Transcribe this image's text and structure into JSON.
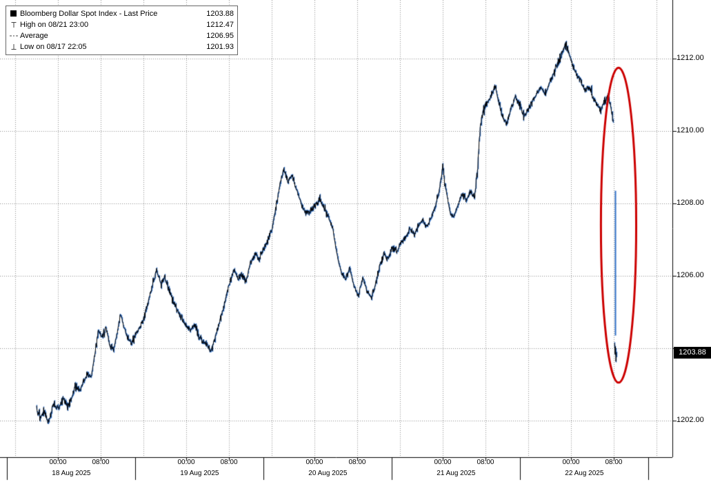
{
  "chart": {
    "last_price_badge": "1203.88",
    "legend": {
      "rows": [
        {
          "marker": "series-square",
          "label": "Bloomberg Dollar Spot Index - Last Price",
          "value": "1203.88"
        },
        {
          "marker": "high-marker",
          "label": "High on 08/21 23:00",
          "value": "1212.47"
        },
        {
          "marker": "average-marker",
          "label": "Average",
          "value": "1206.95"
        },
        {
          "marker": "low-marker",
          "label": "Low on 08/17 22:05",
          "value": "1201.93"
        }
      ]
    },
    "colors": {
      "line_black": "#000000",
      "line_blue": "#2f6fc5",
      "annotation_red": "#cc0000",
      "grid": "#8d8d8d",
      "axis": "#000000",
      "badge_bg": "#000000",
      "badge_text": "#ffffff"
    }
  },
  "chart_data": {
    "type": "line",
    "title": "Bloomberg Dollar Spot Index - Last Price",
    "legend_position": "top-left",
    "grid": true,
    "t_unit": "hours since 2025-08-17 20:00",
    "x_axis": {
      "t_min": -6.84,
      "t_max": 118.97,
      "grid_start_t": -4,
      "grid_interval_hours": 8,
      "time_ticks": [
        {
          "t": 4,
          "label": "00:00"
        },
        {
          "t": 12,
          "label": "08:00"
        },
        {
          "t": 28,
          "label": "00:00"
        },
        {
          "t": 36,
          "label": "08:00"
        },
        {
          "t": 52,
          "label": "00:00"
        },
        {
          "t": 60,
          "label": "08:00"
        },
        {
          "t": 76,
          "label": "00:00"
        },
        {
          "t": 84,
          "label": "08:00"
        },
        {
          "t": 100,
          "label": "00:00"
        },
        {
          "t": 108,
          "label": "08:00"
        }
      ],
      "date_labels": [
        {
          "t": 6.5,
          "label": "18 Aug 2025"
        },
        {
          "t": 30.5,
          "label": "19 Aug 2025"
        },
        {
          "t": 54.5,
          "label": "20 Aug 2025"
        },
        {
          "t": 78.5,
          "label": "21 Aug 2025"
        },
        {
          "t": 102.5,
          "label": "22 Aug 2025"
        }
      ]
    },
    "y_axis": {
      "min": 1200.99,
      "max": 1213.62,
      "ticks": [
        {
          "value": 1212,
          "label": "1212.00"
        },
        {
          "value": 1210,
          "label": "1210.00"
        },
        {
          "value": 1208,
          "label": "1208.00"
        },
        {
          "value": 1206,
          "label": "1206.00"
        },
        {
          "value": 1204,
          "label": ""
        },
        {
          "value": 1202,
          "label": "1202.00"
        }
      ]
    },
    "stats": {
      "last": 1203.88,
      "high": 1212.47,
      "high_time": "08/21 23:00",
      "average": 1206.95,
      "low": 1201.93,
      "low_time": "08/17 22:05"
    },
    "anchors": [
      [
        0,
        1202.35
      ],
      [
        0.8,
        1202.1
      ],
      [
        1.5,
        1202.25
      ],
      [
        2.1,
        1201.93
      ],
      [
        2.6,
        1202.15
      ],
      [
        3.2,
        1202.45
      ],
      [
        4,
        1202.3
      ],
      [
        5,
        1202.6
      ],
      [
        5.8,
        1202.4
      ],
      [
        6.5,
        1202.6
      ],
      [
        7.2,
        1202.95
      ],
      [
        8,
        1202.8
      ],
      [
        8.8,
        1203.1
      ],
      [
        9.5,
        1203.3
      ],
      [
        10.2,
        1203.2
      ],
      [
        11,
        1203.9
      ],
      [
        11.6,
        1204.5
      ],
      [
        12.2,
        1204.3
      ],
      [
        13,
        1204.55
      ],
      [
        13.6,
        1204.15
      ],
      [
        14.4,
        1203.95
      ],
      [
        15,
        1204.35
      ],
      [
        15.7,
        1204.95
      ],
      [
        16.3,
        1204.6
      ],
      [
        17,
        1204.3
      ],
      [
        17.8,
        1204.15
      ],
      [
        18.6,
        1204.4
      ],
      [
        19.5,
        1204.6
      ],
      [
        20.3,
        1204.95
      ],
      [
        21,
        1205.35
      ],
      [
        21.8,
        1205.8
      ],
      [
        22.5,
        1206.15
      ],
      [
        23.2,
        1205.8
      ],
      [
        24,
        1205.95
      ],
      [
        24.8,
        1205.6
      ],
      [
        25.5,
        1205.35
      ],
      [
        26.3,
        1205.05
      ],
      [
        27,
        1204.85
      ],
      [
        27.8,
        1204.65
      ],
      [
        28.8,
        1204.5
      ],
      [
        29.6,
        1204.65
      ],
      [
        30.4,
        1204.35
      ],
      [
        31.2,
        1204.15
      ],
      [
        32,
        1204.05
      ],
      [
        32.6,
        1203.9
      ],
      [
        33.3,
        1204.25
      ],
      [
        34,
        1204.6
      ],
      [
        34.8,
        1205.0
      ],
      [
        35.5,
        1205.45
      ],
      [
        36.2,
        1205.85
      ],
      [
        37,
        1206.15
      ],
      [
        37.7,
        1205.9
      ],
      [
        38.4,
        1206.05
      ],
      [
        39.2,
        1205.85
      ],
      [
        40,
        1206.35
      ],
      [
        40.8,
        1206.6
      ],
      [
        41.6,
        1206.45
      ],
      [
        42.4,
        1206.7
      ],
      [
        43.2,
        1206.95
      ],
      [
        44,
        1207.25
      ],
      [
        44.8,
        1207.9
      ],
      [
        45.5,
        1208.5
      ],
      [
        46.2,
        1208.95
      ],
      [
        47,
        1208.6
      ],
      [
        47.8,
        1208.8
      ],
      [
        48.6,
        1208.4
      ],
      [
        49.4,
        1208.05
      ],
      [
        50.2,
        1207.8
      ],
      [
        51,
        1207.75
      ],
      [
        52,
        1207.9
      ],
      [
        53,
        1208.1
      ],
      [
        53.8,
        1207.9
      ],
      [
        54.6,
        1207.6
      ],
      [
        55.4,
        1207.35
      ],
      [
        56.2,
        1206.6
      ],
      [
        57,
        1206.1
      ],
      [
        57.8,
        1205.9
      ],
      [
        58.6,
        1206.2
      ],
      [
        59.4,
        1205.7
      ],
      [
        60.2,
        1205.45
      ],
      [
        61,
        1205.95
      ],
      [
        61.8,
        1205.6
      ],
      [
        62.6,
        1205.4
      ],
      [
        63.4,
        1205.75
      ],
      [
        64.2,
        1206.25
      ],
      [
        65,
        1206.6
      ],
      [
        65.8,
        1206.45
      ],
      [
        66.6,
        1206.8
      ],
      [
        67.4,
        1206.7
      ],
      [
        68.2,
        1206.9
      ],
      [
        69,
        1207.05
      ],
      [
        69.8,
        1207.3
      ],
      [
        70.6,
        1207.15
      ],
      [
        71.4,
        1207.35
      ],
      [
        72.2,
        1207.55
      ],
      [
        73,
        1207.35
      ],
      [
        73.8,
        1207.6
      ],
      [
        74.6,
        1207.9
      ],
      [
        75.3,
        1208.35
      ],
      [
        76,
        1209.0
      ],
      [
        76.6,
        1208.4
      ],
      [
        77.3,
        1207.8
      ],
      [
        78,
        1207.6
      ],
      [
        78.8,
        1207.95
      ],
      [
        79.6,
        1208.25
      ],
      [
        80.4,
        1208.1
      ],
      [
        81.2,
        1208.35
      ],
      [
        82,
        1208.2
      ],
      [
        82.5,
        1208.9
      ],
      [
        83,
        1210.1
      ],
      [
        83.6,
        1210.6
      ],
      [
        84.4,
        1210.8
      ],
      [
        85.2,
        1211.0
      ],
      [
        85.8,
        1211.25
      ],
      [
        86.5,
        1210.75
      ],
      [
        87.2,
        1210.4
      ],
      [
        88,
        1210.2
      ],
      [
        88.8,
        1210.65
      ],
      [
        89.6,
        1210.95
      ],
      [
        90.4,
        1210.7
      ],
      [
        91.2,
        1210.4
      ],
      [
        92,
        1210.6
      ],
      [
        92.8,
        1210.85
      ],
      [
        93.6,
        1211.05
      ],
      [
        94.4,
        1211.2
      ],
      [
        95.2,
        1211.0
      ],
      [
        96,
        1211.35
      ],
      [
        96.8,
        1211.6
      ],
      [
        97.6,
        1211.9
      ],
      [
        98.4,
        1212.15
      ],
      [
        99,
        1212.45
      ],
      [
        99.6,
        1212.15
      ],
      [
        100,
        1211.95
      ],
      [
        100.6,
        1211.7
      ],
      [
        101.3,
        1211.5
      ],
      [
        102,
        1211.35
      ],
      [
        102.7,
        1211.1
      ],
      [
        103.4,
        1211.2
      ],
      [
        104.1,
        1210.9
      ],
      [
        104.8,
        1210.75
      ],
      [
        105.5,
        1210.6
      ],
      [
        106.2,
        1210.8
      ],
      [
        106.9,
        1211.0
      ],
      [
        107.4,
        1210.7
      ],
      [
        107.9,
        1210.25
      ]
    ],
    "crash": {
      "drop_line": {
        "t": 108.25,
        "from": 1208.35,
        "to": 1204.35
      },
      "tail": [
        [
          108.15,
          1204.15
        ],
        [
          108.25,
          1203.85
        ],
        [
          108.32,
          1204.05
        ],
        [
          108.4,
          1203.62
        ],
        [
          108.5,
          1203.88
        ]
      ]
    },
    "annotation_ellipse": {
      "t_center": 108.9,
      "price_center": 1207.4,
      "t_radius": 3.3,
      "price_radius": 4.35
    }
  }
}
